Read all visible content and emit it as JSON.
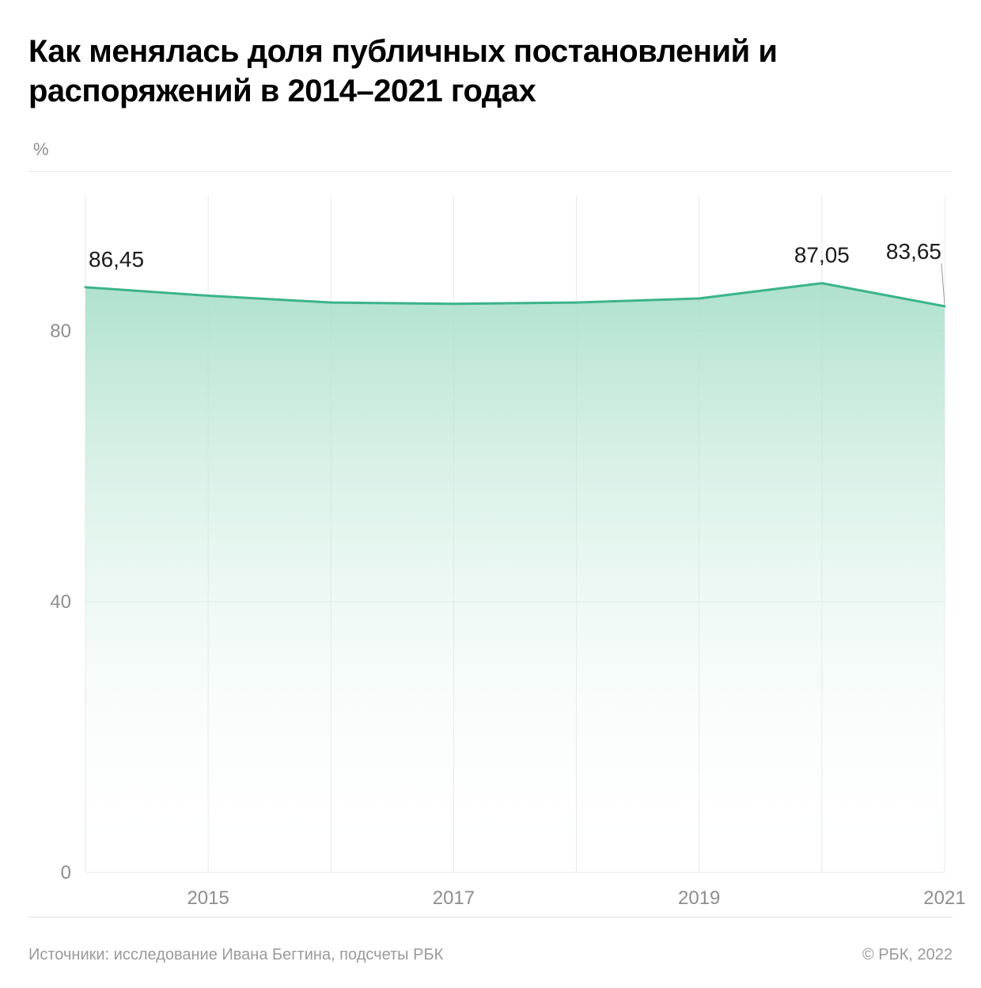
{
  "title": "Как менялась доля публичных постановлений и распоряжений в 2014–2021 годах",
  "y_unit_label": "%",
  "footer": {
    "source": "Источники: исследование Ивана Бегтина, подсчеты РБК",
    "copyright": "© РБК, 2022"
  },
  "chart": {
    "type": "area",
    "x_years": [
      2014,
      2015,
      2016,
      2017,
      2018,
      2019,
      2020,
      2021
    ],
    "values": [
      86.45,
      85.2,
      84.2,
      84.0,
      84.2,
      84.8,
      87.05,
      83.65
    ],
    "labeled_points": [
      {
        "index": 0,
        "text": "86,45",
        "anchor": "start",
        "dy": -26
      },
      {
        "index": 6,
        "text": "87,05",
        "anchor": "middle",
        "dy": -26
      },
      {
        "index": 7,
        "text": "83,65",
        "anchor": "end",
        "dy": -60,
        "leader": true
      }
    ],
    "x_ticks": [
      2015,
      2017,
      2019,
      2021
    ],
    "y_ticks": [
      0,
      40,
      80
    ],
    "y_min": 0,
    "y_max": 100,
    "line_color": "#3cb489",
    "line_width": 3,
    "fill_top_color": "#a6dec8",
    "fill_bottom_color": "#ffffff",
    "grid_color": "#e8e8e8",
    "tick_label_color": "#8e8e8e",
    "data_label_color": "#1b1b1b",
    "background_color": "#ffffff",
    "tick_fontsize": 24,
    "data_label_fontsize": 28
  }
}
